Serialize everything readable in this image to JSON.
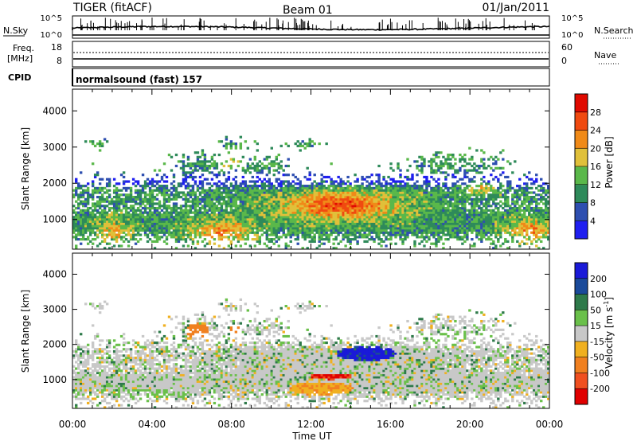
{
  "header": {
    "site": "TIGER (fitACF)",
    "beam": "Beam 01",
    "date": "01/Jan/2011"
  },
  "strip": {
    "nsky_label": "N.Sky",
    "nsearch_label": "N.Search",
    "freq_label_1": "Freq.",
    "freq_label_2": "[MHz]",
    "nave_label": "Nave",
    "cpid_label": "CPID",
    "cpid_text": "normalsound (fast) 157",
    "nsky_ticks": [
      "10^5",
      "10^0"
    ],
    "nsearch_ticks": [
      "10^5",
      "10^0"
    ],
    "freq_ticks": [
      "18",
      "8"
    ],
    "nave_ticks": [
      "60",
      "0"
    ]
  },
  "chart_data": [
    {
      "type": "heatmap",
      "quantity": "power",
      "xlabel": "",
      "ylabel": "Slant Range [km]",
      "xlim": [
        0,
        24
      ],
      "ylim": [
        180,
        4600
      ],
      "yticks": [
        "1000",
        "2000",
        "3000",
        "4000"
      ],
      "colorbar": {
        "label": "Power [dB]",
        "ticks": [
          "4",
          "8",
          "12",
          "16",
          "20",
          "24",
          "28"
        ],
        "colors": [
          "#1f1ff0",
          "#2e4fb0",
          "#2e8a5a",
          "#5ab84a",
          "#e0c03a",
          "#f08a18",
          "#f04a10",
          "#e00a00"
        ]
      }
    },
    {
      "type": "heatmap",
      "quantity": "velocity",
      "xlabel": "Time UT",
      "ylabel": "Slant Range [km]",
      "xlim": [
        0,
        24
      ],
      "ylim": [
        180,
        4600
      ],
      "xticks": [
        "00:00",
        "04:00",
        "08:00",
        "12:00",
        "16:00",
        "20:00",
        "00:00"
      ],
      "yticks": [
        "1000",
        "2000",
        "3000",
        "4000"
      ],
      "colorbar": {
        "label": "Velocity [m s",
        "label_exp": "-1",
        "label_close": "]",
        "ticks": [
          "200",
          "100",
          "50",
          "15",
          "-15",
          "-50",
          "-100",
          "-200"
        ],
        "colors": [
          "#1a1ad8",
          "#1a4a9a",
          "#2e7a4a",
          "#6ac04a",
          "#c8c8c8",
          "#f0b020",
          "#f08020",
          "#f05020",
          "#e00000"
        ]
      }
    }
  ]
}
